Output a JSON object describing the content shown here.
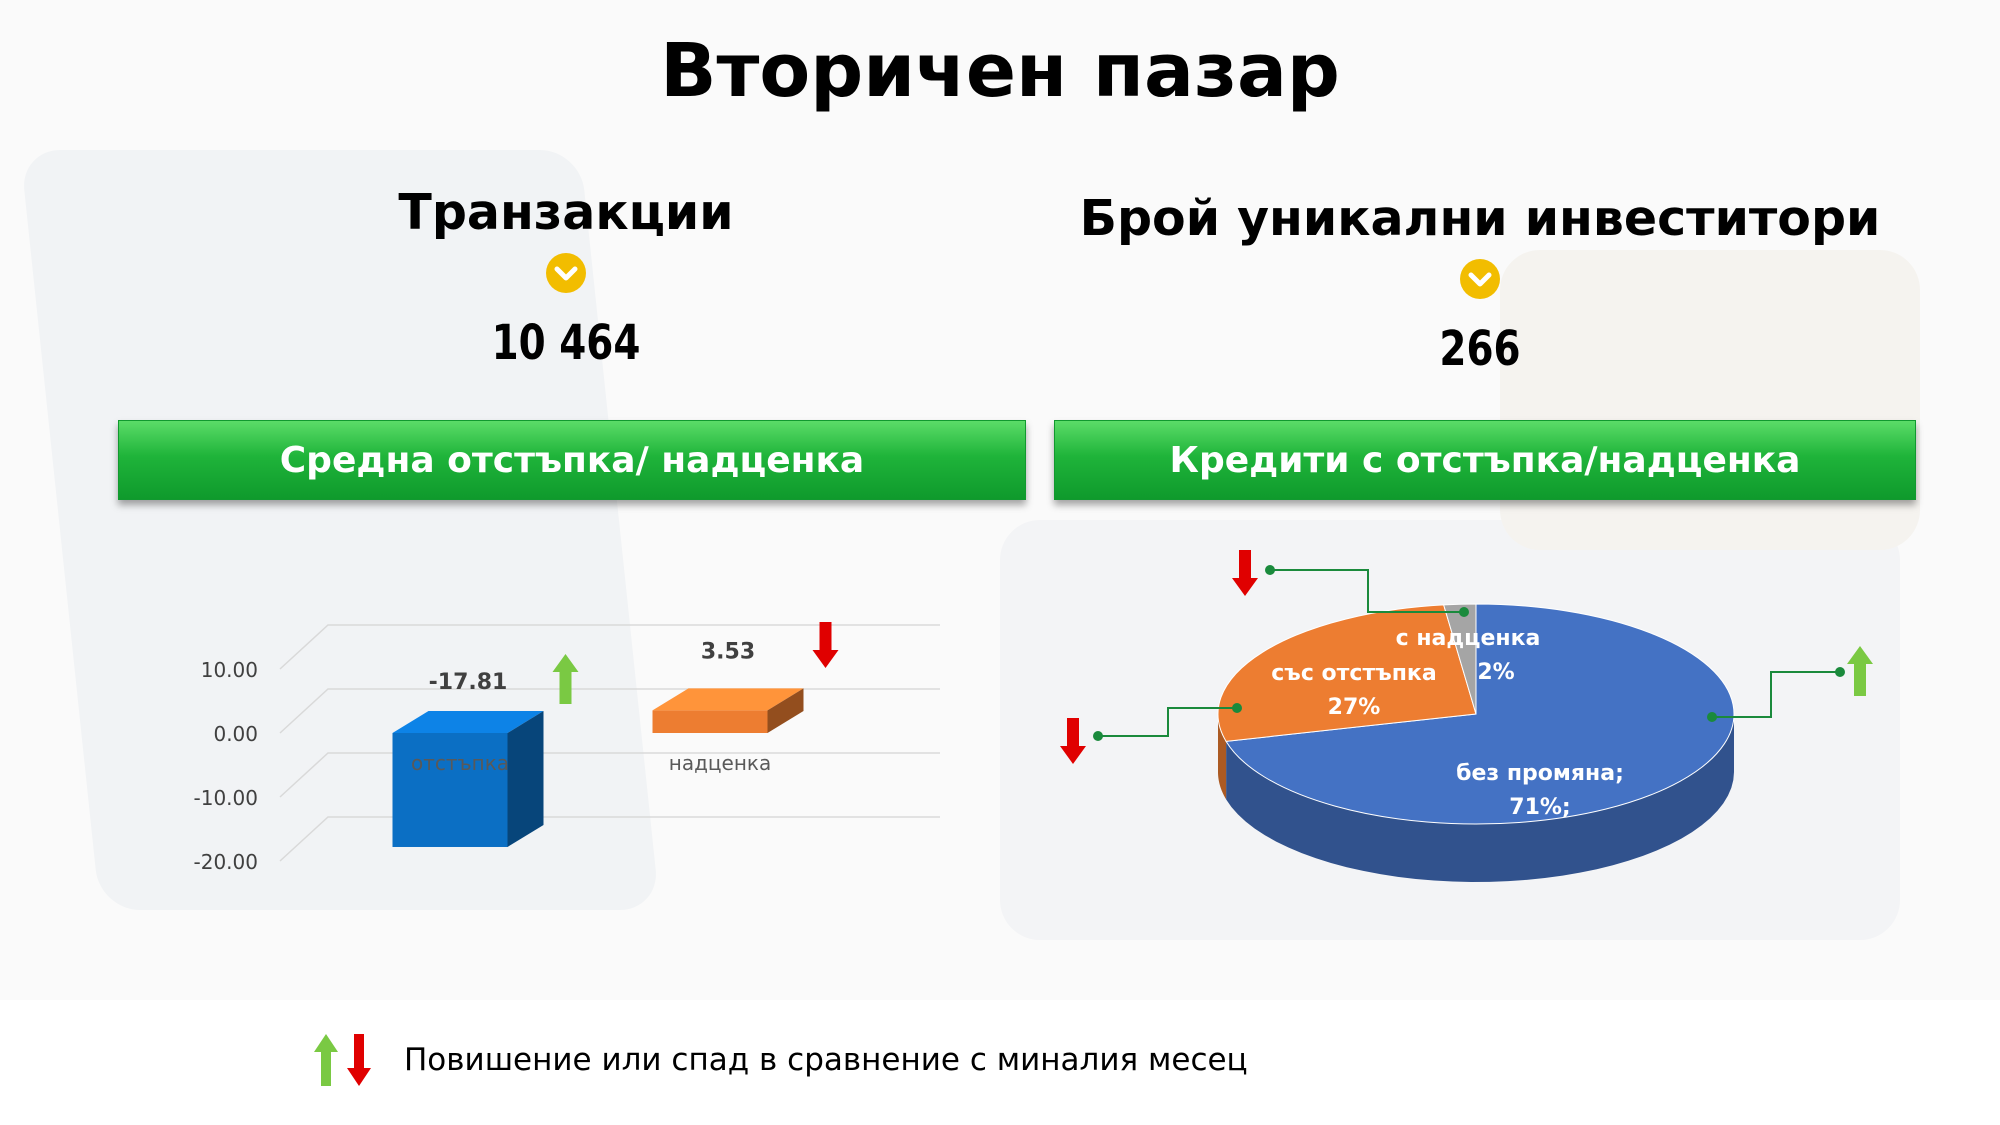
{
  "title": "Вторичен пазар",
  "kpis": {
    "transactions": {
      "label": "Транзакции",
      "value": "10 464"
    },
    "investors": {
      "label": "Брой уникални инвеститори",
      "value": "266"
    }
  },
  "banners": {
    "left": "Средна отстъпка/ надценка",
    "right": "Кредити с отстъпка/надценка"
  },
  "legend": {
    "text": "Повишение или спад в сравнение с миналия месец"
  },
  "colors": {
    "green_banner": "#1fb43a",
    "bar_blue": "#0b6fc4",
    "bar_orange": "#ed7d31",
    "pie_blue": "#4472c4",
    "pie_orange": "#ed7d31",
    "pie_gray": "#a5a5a5",
    "arrow_up": "#7ac943",
    "arrow_down": "#e00000",
    "chevron": "#f2bd00"
  },
  "chart_data": [
    {
      "type": "bar",
      "categories": [
        "отстъпка",
        "надценка"
      ],
      "values": [
        -17.81,
        3.53
      ],
      "data_labels": [
        "-17.81",
        "3.53"
      ],
      "trend": [
        "up",
        "down"
      ],
      "yticks": [
        "10.00",
        "0.00",
        "-10.00",
        "-20.00"
      ],
      "ylim": [
        -20,
        10
      ],
      "grid": true
    },
    {
      "type": "pie",
      "slices": [
        {
          "label": "без промяна;",
          "pct_label": "71%;",
          "value": 71,
          "trend": "up"
        },
        {
          "label": "със отстъпка",
          "pct_label": "27%",
          "value": 27,
          "trend": "down"
        },
        {
          "label": "с надценка",
          "pct_label": "2%",
          "value": 2,
          "trend": "down"
        }
      ]
    }
  ]
}
